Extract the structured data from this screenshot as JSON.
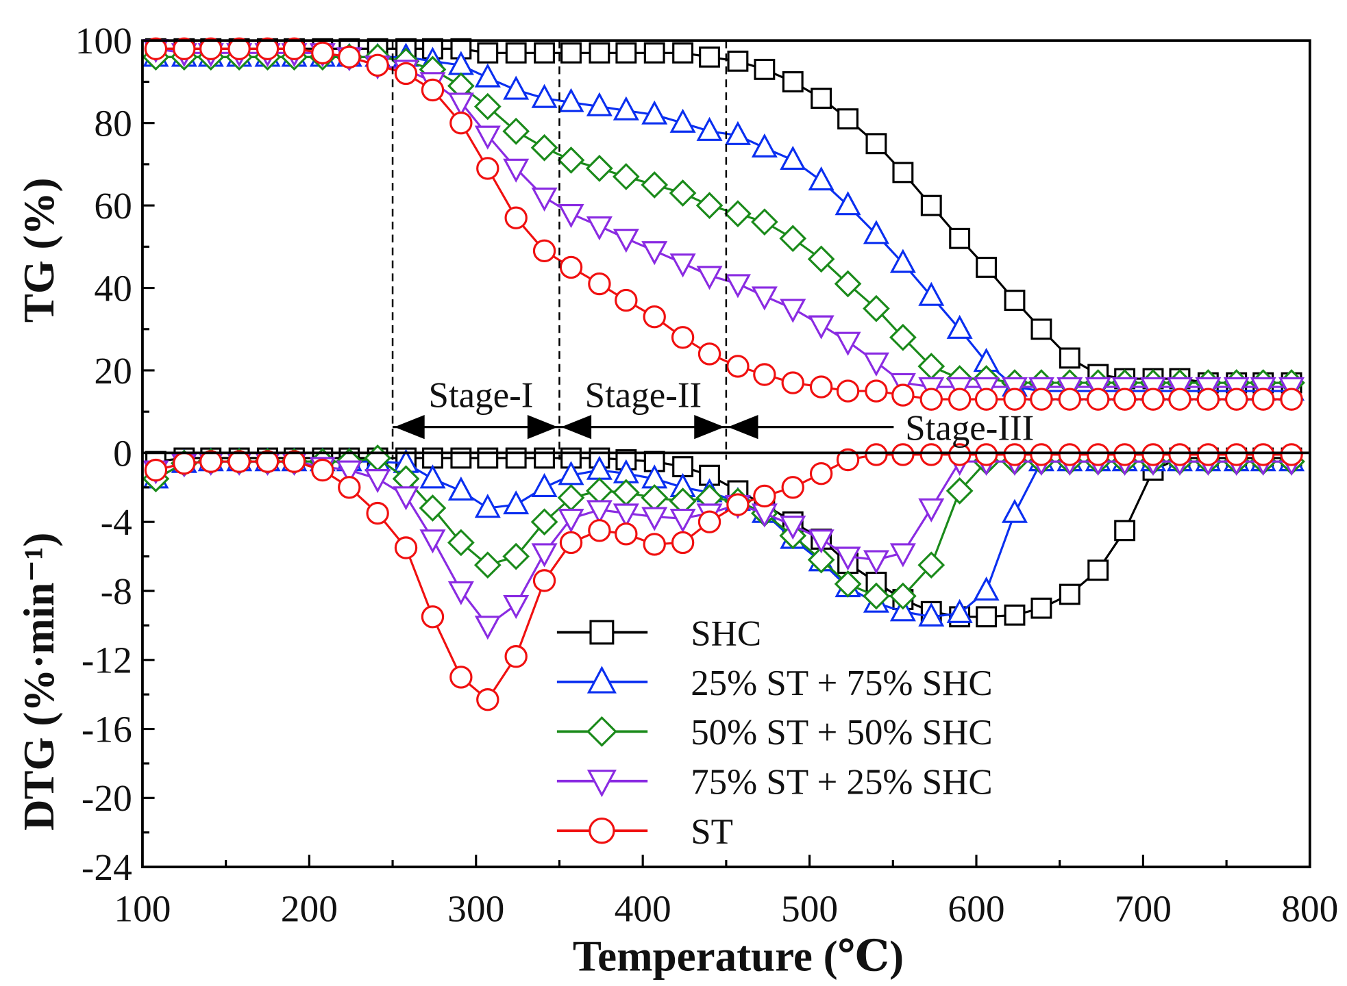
{
  "chart_data": {
    "type": "line",
    "title": "",
    "xlabel": "Temperature (℃)",
    "ylabel_top": "TG (%)",
    "ylabel_bottom": "DTG (%·min⁻¹)",
    "xlim": [
      100,
      800
    ],
    "ylim_tg": [
      0,
      100
    ],
    "ylim_dtg": [
      -24,
      0
    ],
    "xticks": [
      "100",
      "200",
      "300",
      "400",
      "500",
      "600",
      "700",
      "800"
    ],
    "yticks_tg": [
      "0",
      "20",
      "40",
      "60",
      "80",
      "100"
    ],
    "yticks_dtg": [
      "-24",
      "-20",
      "-16",
      "-12",
      "-8",
      "-4"
    ],
    "legend_position": "center",
    "stages": [
      {
        "label": "Stage-I",
        "from": 250,
        "to": 350
      },
      {
        "label": "Stage-II",
        "from": 350,
        "to": 450
      },
      {
        "label": "Stage-III",
        "from": 450,
        "to": 800
      }
    ],
    "x": [
      108,
      125,
      141,
      158,
      175,
      191,
      208,
      224,
      241,
      258,
      274,
      291,
      307,
      324,
      341,
      357,
      374,
      390,
      407,
      424,
      440,
      457,
      473,
      490,
      507,
      523,
      540,
      556,
      573,
      590,
      606,
      623,
      639,
      656,
      673,
      689,
      706,
      722,
      739,
      756,
      772,
      789
    ],
    "series": [
      {
        "name": "SHC",
        "color": "#000000",
        "marker": "square",
        "tg": [
          98,
          98,
          98,
          98,
          98,
          98,
          98,
          98,
          98,
          98,
          98,
          98,
          97,
          97,
          97,
          97,
          97,
          97,
          97,
          97,
          96,
          95,
          93,
          90,
          86,
          81,
          75,
          68,
          60,
          52,
          45,
          37,
          30,
          23,
          19,
          18,
          18,
          18,
          17,
          17,
          17,
          17
        ],
        "dtg": [
          -0.5,
          -0.3,
          -0.3,
          -0.3,
          -0.3,
          -0.3,
          -0.3,
          -0.3,
          -0.3,
          -0.3,
          -0.3,
          -0.3,
          -0.3,
          -0.3,
          -0.3,
          -0.3,
          -0.3,
          -0.4,
          -0.5,
          -0.8,
          -1.3,
          -2.2,
          -3,
          -4,
          -5,
          -6.4,
          -7.5,
          -8.5,
          -9.2,
          -9.5,
          -9.5,
          -9.4,
          -9,
          -8.2,
          -6.8,
          -4.5,
          -1,
          -0.3,
          -0.3,
          -0.3,
          -0.3,
          -0.3
        ]
      },
      {
        "name": "25% ST + 75% SHC",
        "color": "#0a2ff0",
        "marker": "triangle-up",
        "tg": [
          96,
          96,
          96,
          96,
          96,
          96,
          96,
          96,
          96,
          96,
          95,
          94,
          91,
          88,
          86,
          85,
          84,
          83,
          82,
          80,
          78,
          77,
          74,
          71,
          66,
          60,
          53,
          46,
          38,
          30,
          22,
          16,
          15,
          15,
          15,
          15,
          15,
          15,
          15,
          15,
          15,
          15
        ],
        "dtg": [
          -1.5,
          -0.6,
          -0.5,
          -0.5,
          -0.5,
          -0.5,
          -0.5,
          -0.5,
          -0.5,
          -0.6,
          -1.5,
          -2.2,
          -3.2,
          -3,
          -2,
          -1.3,
          -1,
          -1.2,
          -1.5,
          -2,
          -2.3,
          -2.8,
          -3.5,
          -5,
          -6.3,
          -7.8,
          -8.7,
          -9.2,
          -9.5,
          -9.3,
          -8,
          -3.5,
          -0.5,
          -0.5,
          -0.5,
          -0.5,
          -0.5,
          -0.5,
          -0.5,
          -0.5,
          -0.5,
          -0.5
        ]
      },
      {
        "name": "50% ST + 50% SHC",
        "color": "#1a8a1a",
        "marker": "diamond",
        "tg": [
          96,
          96,
          96,
          96,
          96,
          96,
          96,
          96,
          96,
          95,
          93,
          89,
          84,
          78,
          74,
          71,
          69,
          67,
          65,
          63,
          60,
          58,
          56,
          52,
          47,
          41,
          35,
          28,
          21,
          18,
          18,
          17,
          17,
          17,
          17,
          17,
          17,
          17,
          17,
          17,
          17,
          17
        ],
        "dtg": [
          -1.5,
          -0.6,
          -0.5,
          -0.5,
          -0.5,
          -0.5,
          -0.5,
          -0.5,
          -0.3,
          -1.5,
          -3.2,
          -5.2,
          -6.5,
          -6,
          -4,
          -2.6,
          -2.2,
          -2.3,
          -2.6,
          -2.8,
          -2.6,
          -2.8,
          -3.5,
          -4.8,
          -6.2,
          -7.6,
          -8.3,
          -8.3,
          -6.5,
          -2.2,
          -0.5,
          -0.5,
          -0.5,
          -0.5,
          -0.5,
          -0.5,
          -0.5,
          -0.5,
          -0.5,
          -0.5,
          -0.5,
          -0.5
        ]
      },
      {
        "name": "75% ST + 25% SHC",
        "color": "#8a2be2",
        "marker": "triangle-down",
        "tg": [
          98,
          97,
          97,
          97,
          97,
          97,
          97,
          96,
          94,
          93,
          90,
          85,
          77,
          69,
          62,
          58,
          55,
          52,
          49,
          46,
          43,
          41,
          38,
          35,
          31,
          27,
          22,
          17,
          16,
          16,
          16,
          16,
          16,
          16,
          16,
          16,
          16,
          16,
          16,
          16,
          16,
          16
        ],
        "dtg": [
          -1,
          -0.6,
          -0.5,
          -0.5,
          -0.5,
          -0.5,
          -0.8,
          -1,
          -1.5,
          -2.5,
          -5,
          -8,
          -10,
          -8.8,
          -5.8,
          -3.8,
          -3.3,
          -3.5,
          -3.7,
          -3.8,
          -3.5,
          -3,
          -3.5,
          -4.2,
          -5,
          -6,
          -6.2,
          -5.8,
          -3.2,
          -0.5,
          -0.5,
          -0.5,
          -0.5,
          -0.5,
          -0.5,
          -0.5,
          -0.5,
          -0.5,
          -0.5,
          -0.5,
          -0.5,
          -0.5
        ]
      },
      {
        "name": "ST",
        "color": "#f01010",
        "marker": "circle",
        "tg": [
          98,
          98,
          98,
          98,
          98,
          98,
          97,
          96,
          94,
          92,
          88,
          80,
          69,
          57,
          49,
          45,
          41,
          37,
          33,
          28,
          24,
          21,
          19,
          17,
          16,
          15,
          15,
          14,
          13,
          13,
          13,
          13,
          13,
          13,
          13,
          13,
          13,
          13,
          13,
          13,
          13,
          13
        ],
        "dtg": [
          -1,
          -0.6,
          -0.5,
          -0.5,
          -0.5,
          -0.5,
          -1,
          -2,
          -3.5,
          -5.5,
          -9.5,
          -13,
          -14.3,
          -11.8,
          -7.4,
          -5.2,
          -4.5,
          -4.7,
          -5.3,
          -5.2,
          -4,
          -3,
          -2.5,
          -2,
          -1.2,
          -0.4,
          -0.1,
          -0.1,
          -0.1,
          -0.1,
          -0.1,
          -0.1,
          -0.1,
          -0.1,
          -0.1,
          -0.1,
          -0.1,
          -0.1,
          -0.1,
          -0.1,
          -0.1,
          -0.1
        ]
      }
    ]
  }
}
